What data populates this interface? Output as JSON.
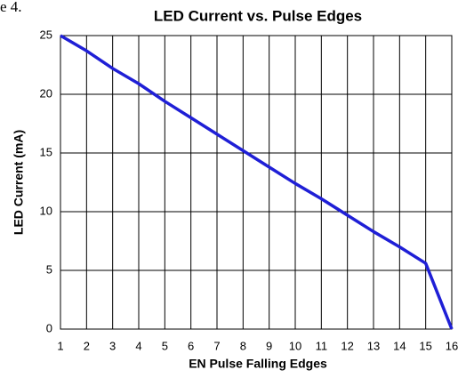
{
  "page_fragment": "e 4.",
  "chart_data": {
    "type": "line",
    "title": "LED Current vs. Pulse Edges",
    "x_label": "EN Pulse Falling Edges",
    "y_label": "LED Current (mA)",
    "x": [
      1,
      2,
      3,
      4,
      5,
      6,
      7,
      8,
      9,
      10,
      11,
      12,
      13,
      14,
      15,
      16
    ],
    "series": [
      {
        "name": "LED Current",
        "color": "#1f1fd6",
        "values": [
          25,
          23.7,
          22.2,
          20.9,
          19.4,
          18.0,
          16.6,
          15.2,
          13.8,
          12.4,
          11.1,
          9.7,
          8.3,
          7.0,
          5.6,
          0
        ]
      }
    ],
    "xlim": [
      1,
      16
    ],
    "xticks": [
      1,
      2,
      3,
      4,
      5,
      6,
      7,
      8,
      9,
      10,
      11,
      12,
      13,
      14,
      15,
      16
    ],
    "ylim": [
      0,
      25
    ],
    "yticks": [
      0,
      5,
      10,
      15,
      20,
      25
    ],
    "grid": true
  }
}
